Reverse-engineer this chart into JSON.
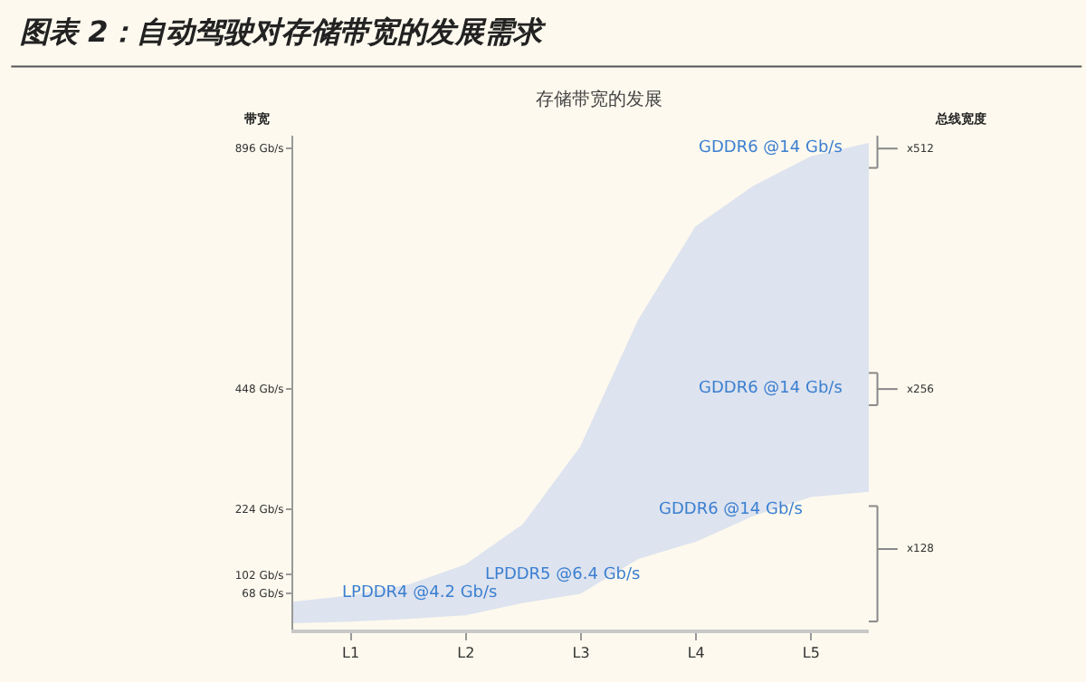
{
  "chart_data": {
    "type": "area",
    "title": "图表 2：自动驾驶对存储带宽的发展需求",
    "subtitle": "存储带宽的发展",
    "ylabel": "带宽",
    "categories": [
      null,
      "L1",
      null,
      "L2",
      null,
      "L3",
      null,
      "L4",
      null,
      "L5",
      null
    ],
    "series": [
      {
        "color": "#fdf9ee",
        "values": [
          10,
          13,
          18,
          25,
          48,
          65,
          130,
          162,
          210,
          245,
          255
        ]
      },
      {
        "color": "#dde3ef",
        "values": [
          40,
          49,
          64,
          95,
          147,
          275,
          445,
          588,
          615,
          635,
          650
        ]
      }
    ],
    "ylim": [
      0,
      920
    ],
    "yticks": [
      {
        "value": 68,
        "label": "68 Gb/s"
      },
      {
        "value": 102,
        "label": "102 Gb/s"
      },
      {
        "value": 224,
        "label": "224 Gb/s"
      },
      {
        "value": 448,
        "label": "448 Gb/s"
      },
      {
        "value": 896,
        "label": "896 Gb/s"
      }
    ],
    "annotations": [
      "LPDDR4 @4.2 Gb/s",
      "LPDDR5 @6.4 Gb/s",
      "GDDR6 @14 Gb/s",
      "GDDR6 @14 Gb/s",
      "GDDR6 @14 Gb/s",
      "x512",
      "x256",
      "x128",
      "总线宽度"
    ],
    "stacked": true,
    "grid": false
  }
}
